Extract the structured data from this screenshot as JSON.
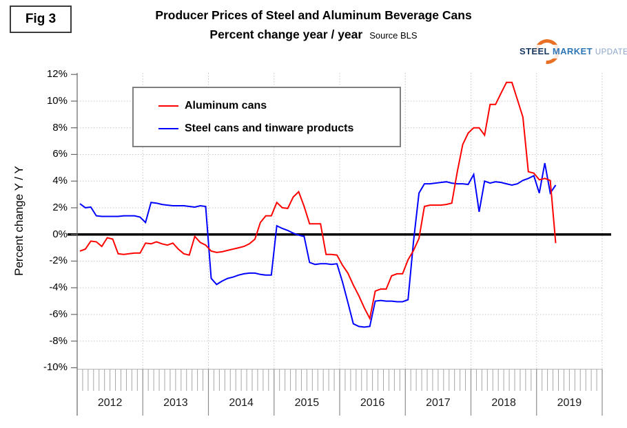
{
  "header": {
    "fig_label": "Fig 3",
    "title": "Producer Prices of Steel and Aluminum Beverage Cans",
    "subtitle": "Percent change year / year",
    "source": "Source BLS"
  },
  "logo": {
    "word1": "STEEL",
    "word2": "MARKET",
    "word3": "UPDATE",
    "ring_color": "#e86f24"
  },
  "y_axis": {
    "title": "Percent change Y / Y"
  },
  "legend": {
    "items": [
      {
        "label": "Aluminum cans",
        "color": "#ff0000"
      },
      {
        "label": "Steel cans and tinware products",
        "color": "#0000ff"
      }
    ]
  },
  "chart_data": {
    "type": "line",
    "title": "Producer Prices of Steel and Aluminum Beverage Cans",
    "subtitle": "Percent change year / year",
    "source": "Source BLS",
    "ylabel": "Percent change Y / Y",
    "ylim": [
      -10,
      12
    ],
    "y_tick_step": 2,
    "y_tick_labels": [
      "12%",
      "10%",
      "8%",
      "6%",
      "4%",
      "2%",
      "0%",
      "-2%",
      "-4%",
      "-6%",
      "-8%",
      "-10%"
    ],
    "grid": true,
    "legend_position": "top-left",
    "x_unit": "month",
    "x_start": "2012-01",
    "x_end": "2019-04",
    "year_labels": [
      "2012",
      "2013",
      "2014",
      "2015",
      "2016",
      "2017",
      "2018",
      "2019"
    ],
    "series": [
      {
        "name": "Aluminum cans",
        "color": "#ff0000",
        "values": [
          -1.25,
          -1.1,
          -0.5,
          -0.55,
          -0.9,
          -0.25,
          -0.35,
          -1.45,
          -1.5,
          -1.45,
          -1.4,
          -1.4,
          -0.65,
          -0.7,
          -0.55,
          -0.7,
          -0.8,
          -0.65,
          -1.1,
          -1.45,
          -1.55,
          -0.15,
          -0.6,
          -0.8,
          -1.25,
          -1.35,
          -1.3,
          -1.2,
          -1.1,
          -1.0,
          -0.9,
          -0.7,
          -0.35,
          0.9,
          1.4,
          1.4,
          2.4,
          2.0,
          1.95,
          2.8,
          3.2,
          2.1,
          0.8,
          0.8,
          0.8,
          -1.5,
          -1.5,
          -1.55,
          -2.3,
          -2.9,
          -3.8,
          -4.6,
          -5.5,
          -6.3,
          -4.25,
          -4.1,
          -4.1,
          -3.1,
          -2.95,
          -2.95,
          -1.9,
          -1.2,
          -0.3,
          2.1,
          2.2,
          2.2,
          2.2,
          2.25,
          2.35,
          4.7,
          6.75,
          7.6,
          8.0,
          8.0,
          7.45,
          9.75,
          9.75,
          10.6,
          11.4,
          11.4,
          10.1,
          8.8,
          4.7,
          4.6,
          4.1,
          4.2,
          4.05,
          -0.65
        ]
      },
      {
        "name": "Steel cans and tinware products",
        "color": "#0000ff",
        "values": [
          2.3,
          2.0,
          2.05,
          1.4,
          1.35,
          1.35,
          1.35,
          1.35,
          1.4,
          1.4,
          1.4,
          1.3,
          0.9,
          2.4,
          2.35,
          2.25,
          2.2,
          2.15,
          2.15,
          2.15,
          2.1,
          2.05,
          2.15,
          2.1,
          -3.3,
          -3.75,
          -3.5,
          -3.3,
          -3.2,
          -3.05,
          -2.95,
          -2.9,
          -2.9,
          -3.0,
          -3.05,
          -3.05,
          0.65,
          0.45,
          0.3,
          0.1,
          -0.05,
          -0.15,
          -2.1,
          -2.25,
          -2.2,
          -2.2,
          -2.25,
          -2.2,
          -3.55,
          -5.1,
          -6.7,
          -6.9,
          -6.95,
          -6.9,
          -5.0,
          -4.95,
          -5.0,
          -5.0,
          -5.05,
          -5.05,
          -4.9,
          -0.5,
          3.1,
          3.8,
          3.8,
          3.85,
          3.9,
          3.95,
          3.85,
          3.8,
          3.8,
          3.75,
          4.5,
          1.7,
          4.0,
          3.85,
          3.95,
          3.9,
          3.8,
          3.7,
          3.8,
          4.05,
          4.2,
          4.4,
          3.1,
          5.35,
          3.1,
          3.7
        ]
      }
    ]
  }
}
